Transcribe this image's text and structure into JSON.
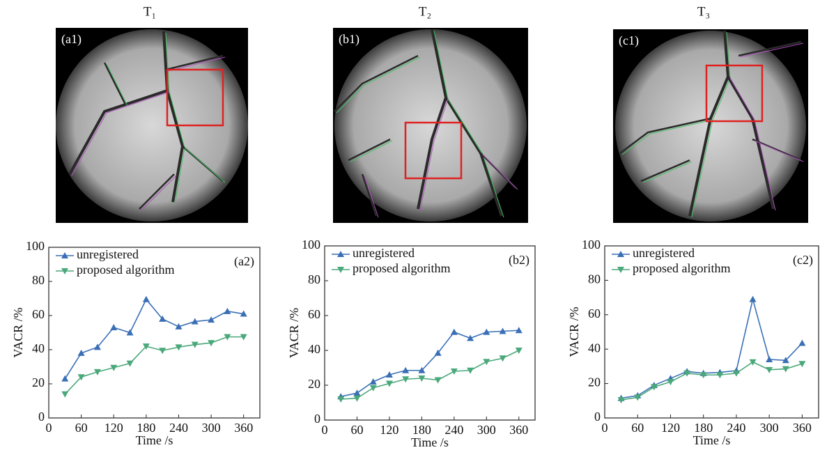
{
  "images": [
    {
      "title": "T₁",
      "label": "(a1)"
    },
    {
      "title": "T₂",
      "label": "(b1)"
    },
    {
      "title": "T₃",
      "label": "(c1)"
    }
  ],
  "chart_data": [
    {
      "type": "line",
      "annotation": "(a2)",
      "x_label": "Time /s",
      "y_label": "VACR /%",
      "x": [
        30,
        60,
        90,
        120,
        150,
        180,
        210,
        240,
        270,
        300,
        330,
        360
      ],
      "series": [
        {
          "name": "unregistered",
          "color": "#3a6fb5",
          "values": [
            23,
            38,
            41.5,
            53,
            50,
            69.5,
            58,
            53.5,
            56.5,
            57.5,
            62.5,
            61
          ]
        },
        {
          "name": "proposed algorithm",
          "color": "#4aa87a",
          "values": [
            14,
            24,
            27,
            29.5,
            32,
            42,
            39.5,
            41.5,
            43,
            44,
            47.5,
            47.5
          ]
        }
      ],
      "xlim": [
        0,
        390
      ],
      "ylim": [
        0,
        100
      ],
      "xticks": [
        0,
        60,
        120,
        180,
        240,
        300,
        360
      ],
      "yticks": [
        0,
        20,
        40,
        60,
        80,
        100
      ]
    },
    {
      "type": "line",
      "annotation": "(b2)",
      "x_label": "Time /s",
      "y_label": "VACR /%",
      "x": [
        30,
        60,
        90,
        120,
        150,
        180,
        210,
        240,
        270,
        300,
        330,
        360
      ],
      "series": [
        {
          "name": "unregistered",
          "color": "#3a6fb5",
          "values": [
            13.5,
            15.5,
            22,
            26,
            28.5,
            28.5,
            38.5,
            50.5,
            47,
            50.5,
            51,
            51.5
          ]
        },
        {
          "name": "proposed algorithm",
          "color": "#4aa87a",
          "values": [
            12,
            12.5,
            18.5,
            21,
            23.5,
            24,
            23,
            28,
            28.5,
            33.5,
            35.5,
            40
          ]
        }
      ],
      "xlim": [
        0,
        390
      ],
      "ylim": [
        0,
        100
      ],
      "xticks": [
        0,
        60,
        120,
        180,
        240,
        300,
        360
      ],
      "yticks": [
        0,
        20,
        40,
        60,
        80,
        100
      ]
    },
    {
      "type": "line",
      "annotation": "(c2)",
      "x_label": "Time /s",
      "y_label": "VACR /%",
      "x": [
        30,
        60,
        90,
        120,
        150,
        180,
        210,
        240,
        270,
        300,
        330,
        360
      ],
      "series": [
        {
          "name": "unregistered",
          "color": "#3a6fb5",
          "values": [
            11.5,
            13,
            19,
            23,
            27,
            26,
            26.5,
            27.5,
            69,
            34,
            33.5,
            43.5
          ]
        },
        {
          "name": "proposed algorithm",
          "color": "#4aa87a",
          "values": [
            10.5,
            12,
            18,
            21,
            26,
            25,
            25,
            26,
            32.5,
            28,
            28.5,
            31.5
          ]
        }
      ],
      "xlim": [
        0,
        390
      ],
      "ylim": [
        0,
        100
      ],
      "xticks": [
        0,
        60,
        120,
        180,
        240,
        300,
        360
      ],
      "yticks": [
        0,
        20,
        40,
        60,
        80,
        100
      ]
    }
  ]
}
